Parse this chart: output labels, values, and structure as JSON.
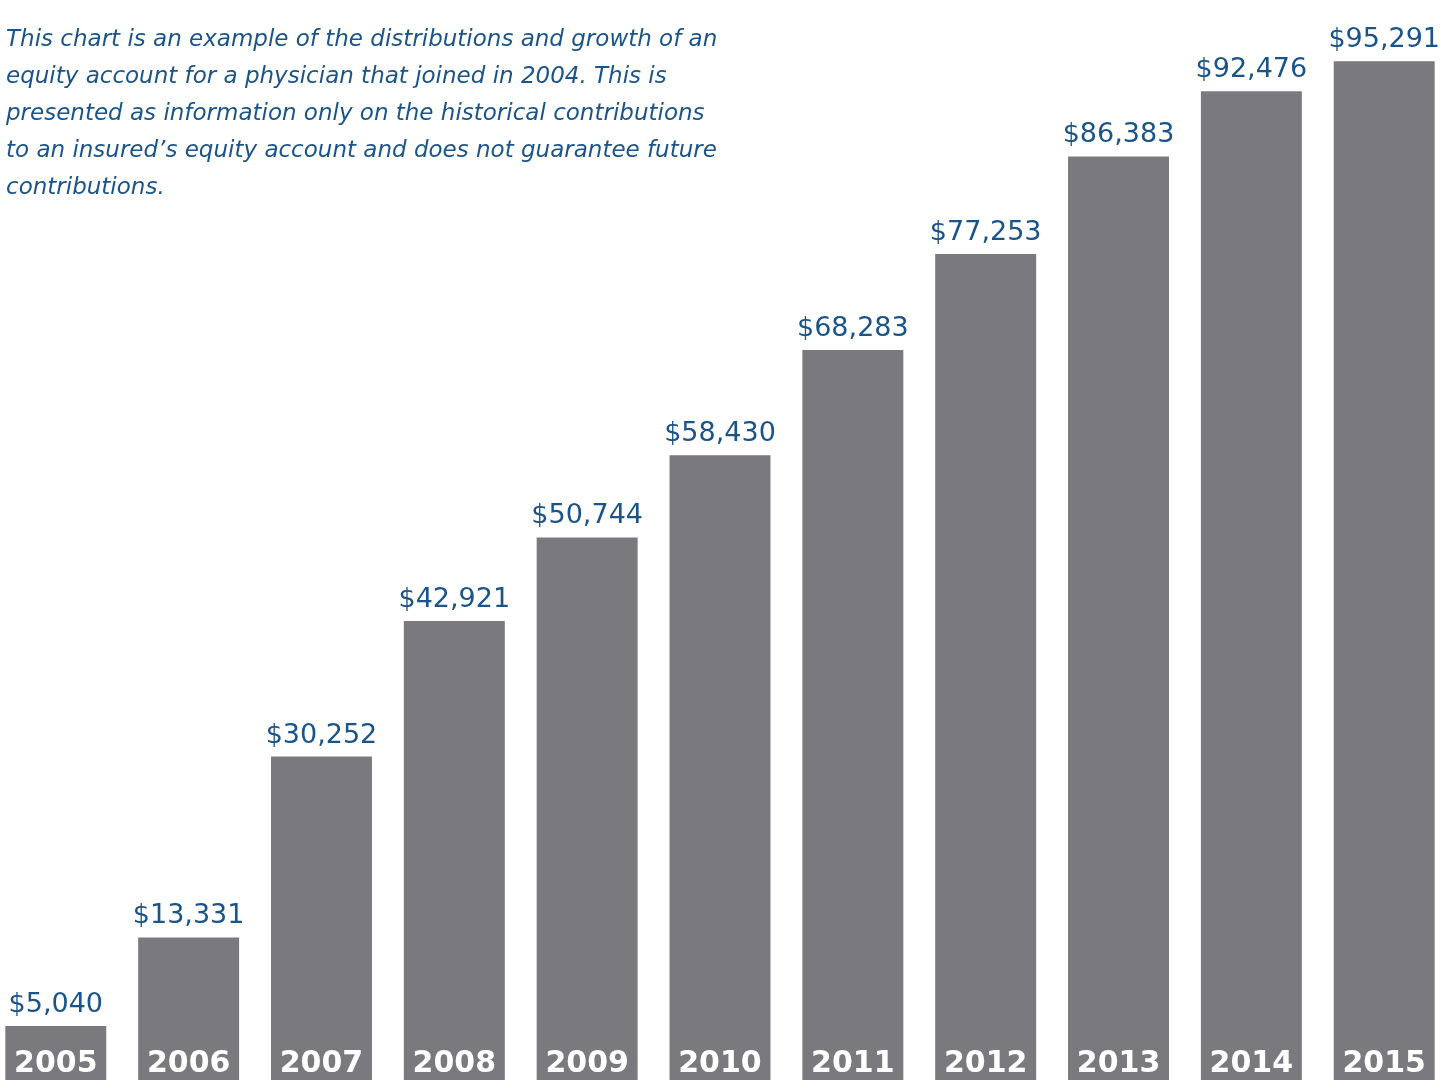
{
  "chart_data": {
    "type": "bar",
    "categories": [
      "2005",
      "2006",
      "2007",
      "2008",
      "2009",
      "2010",
      "2011",
      "2012",
      "2013",
      "2014",
      "2015"
    ],
    "values": [
      5040,
      13331,
      30252,
      42921,
      50744,
      58430,
      68283,
      77253,
      86383,
      92476,
      95291
    ],
    "value_labels": [
      "$5,040",
      "$13,331",
      "$30,252",
      "$42,921",
      "$50,744",
      "$58,430",
      "$68,283",
      "$77,253",
      "$86,383",
      "$92,476",
      "$95,291"
    ],
    "color": "#7a7a7e",
    "annotations": [
      "This chart is an example of the distributions and growth of an equity account for a physician that joined in 2004. This is presented as information only on the historical contributions to an insured’s equity account and does not guarantee future contributions."
    ]
  }
}
